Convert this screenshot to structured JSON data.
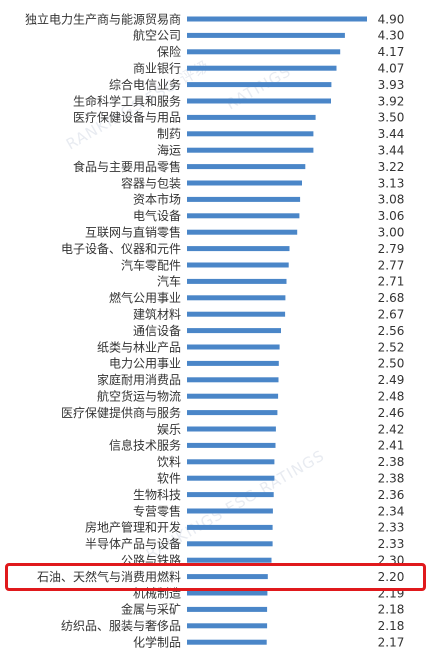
{
  "chart_data": {
    "type": "bar",
    "orientation": "horizontal",
    "title": "",
    "xlabel": "",
    "ylabel": "",
    "bar_color": "#4a86c8",
    "highlight_color": "#e0191c",
    "highlight_category": "石油、天然气与消费用燃料",
    "xlim": [
      0,
      5.2
    ],
    "categories": [
      "独立电力生产商与能源贸易商",
      "航空公司",
      "保险",
      "商业银行",
      "综合电信业务",
      "生命科学工具和服务",
      "医疗保健设备与用品",
      "制药",
      "海运",
      "食品与主要用品零售",
      "容器与包装",
      "资本市场",
      "电气设备",
      "互联网与直销零售",
      "电子设备、仪器和元件",
      "汽车零配件",
      "汽车",
      "燃气公用事业",
      "建筑材料",
      "通信设备",
      "纸类与林业产品",
      "电力公用事业",
      "家庭耐用消费品",
      "航空货运与物流",
      "医疗保健提供商与服务",
      "娱乐",
      "信息技术服务",
      "饮料",
      "软件",
      "生物科技",
      "专营零售",
      "房地产管理和开发",
      "半导体产品与设备",
      "公路与铁路",
      "石油、天然气与消费用燃料",
      "机械制造",
      "金属与采矿",
      "纺织品、服装与奢侈品",
      "化学制品"
    ],
    "value_labels": [
      "4.90",
      "4.30",
      "4.17",
      "4.07",
      "3.93",
      "3.92",
      "3.50",
      "3.44",
      "3.44",
      "3.22",
      "3.13",
      "3.08",
      "3.06",
      "3.00",
      "2.79",
      "2.77",
      "2.71",
      "2.68",
      "2.67",
      "2.56",
      "2.52",
      "2.50",
      "2.49",
      "2.48",
      "2.46",
      "2.42",
      "2.41",
      "2.38",
      "2.38",
      "2.36",
      "2.34",
      "2.33",
      "2.33",
      "2.30",
      "2.20",
      "2.19",
      "2.18",
      "2.18",
      "2.17"
    ],
    "values": [
      4.9,
      4.3,
      4.17,
      4.07,
      3.93,
      3.92,
      3.5,
      3.44,
      3.44,
      3.22,
      3.13,
      3.08,
      3.06,
      3.0,
      2.79,
      2.77,
      2.71,
      2.68,
      2.67,
      2.56,
      2.52,
      2.5,
      2.49,
      2.48,
      2.46,
      2.42,
      2.41,
      2.38,
      2.38,
      2.36,
      2.34,
      2.33,
      2.33,
      2.3,
      2.2,
      2.19,
      2.18,
      2.18,
      2.17
    ]
  },
  "watermark": [
    "RANKINGS ESG 评级",
    "RATINGS",
    "RANKINGS ESG RATINGS"
  ]
}
